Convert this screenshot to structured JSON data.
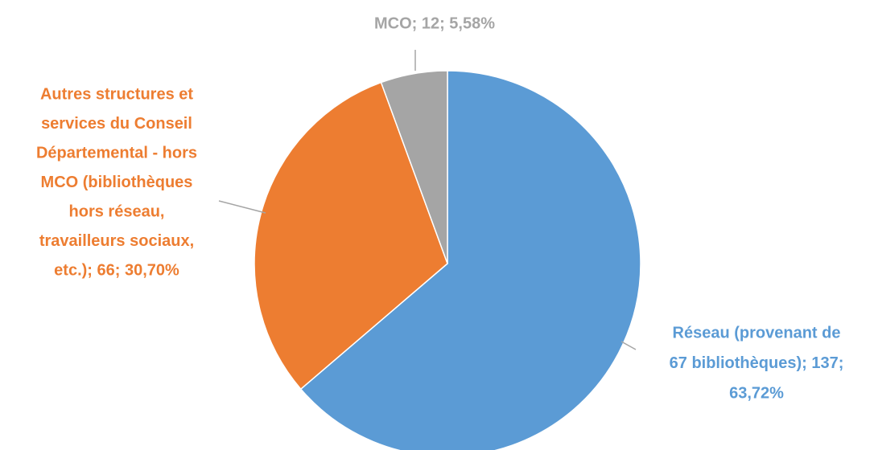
{
  "chart_data": {
    "type": "pie",
    "values": [
      137,
      66,
      12
    ],
    "colors": [
      "#5b9bd5",
      "#ed7d31",
      "#a5a5a5"
    ],
    "labels": [
      [
        "Réseau (provenant de",
        "67 bibliothèques); 137;",
        "63,72%"
      ],
      [
        "Autres structures et",
        "services du Conseil",
        "Départemental - hors",
        "MCO (bibliothèques",
        "hors réseau,",
        "travailleurs sociaux,",
        "etc.); 66; 30,70%"
      ],
      [
        "MCO; 12; 5,58%"
      ]
    ]
  }
}
